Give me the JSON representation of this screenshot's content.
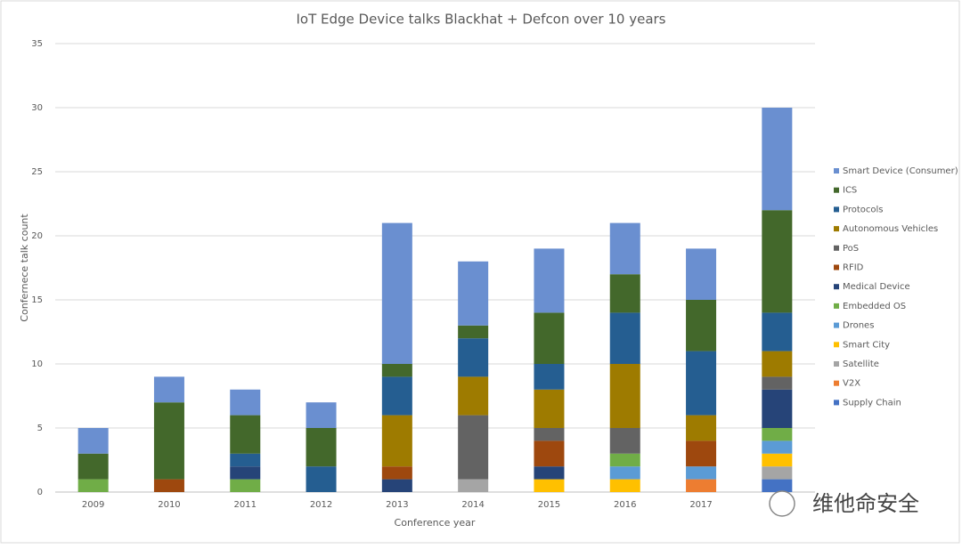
{
  "chart_data": {
    "type": "stacked_bar",
    "title": "IoT Edge Device talks Blackhat + Defcon over 10 years",
    "x_label": "Conference year",
    "y_label": "Confernece talk count",
    "categories": [
      "2009",
      "2010",
      "2011",
      "2012",
      "2013",
      "2014",
      "2015",
      "2016",
      "2017",
      null
    ],
    "ylim": [
      0,
      35
    ],
    "yticks": [
      0,
      5,
      10,
      15,
      20,
      25,
      30,
      35
    ],
    "grid": true,
    "legend": "right",
    "series": [
      {
        "name": "Smart Device (Consumer)",
        "color": "#6a8fd0",
        "values": [
          2,
          2,
          2,
          2,
          11,
          5,
          5,
          4,
          4,
          8
        ]
      },
      {
        "name": "ICS",
        "color": "#43682b",
        "values": [
          2,
          6,
          3,
          3,
          1,
          1,
          4,
          3,
          4,
          8
        ]
      },
      {
        "name": "Protocols",
        "color": "#255e91",
        "values": [
          0,
          0,
          1,
          2,
          3,
          3,
          2,
          4,
          5,
          3
        ]
      },
      {
        "name": "Autonomous Vehicles",
        "color": "#9e7b00",
        "values": [
          0,
          0,
          0,
          0,
          4,
          3,
          3,
          5,
          2,
          2
        ]
      },
      {
        "name": "PoS",
        "color": "#636363",
        "values": [
          0,
          0,
          0,
          0,
          0,
          5,
          1,
          2,
          0,
          1
        ]
      },
      {
        "name": "RFID",
        "color": "#9e480e",
        "values": [
          0,
          1,
          0,
          0,
          1,
          0,
          2,
          0,
          2,
          0
        ]
      },
      {
        "name": "Medical Device",
        "color": "#264478",
        "values": [
          0,
          0,
          1,
          0,
          1,
          0,
          1,
          0,
          0,
          3
        ]
      },
      {
        "name": "Embedded OS",
        "color": "#70ad47",
        "values": [
          1,
          0,
          1,
          0,
          0,
          0,
          0,
          1,
          0,
          1
        ]
      },
      {
        "name": "Drones",
        "color": "#5b9bd5",
        "values": [
          0,
          0,
          0,
          0,
          0,
          0,
          0,
          1,
          1,
          1
        ]
      },
      {
        "name": "Smart City",
        "color": "#ffc000",
        "values": [
          0,
          0,
          0,
          0,
          0,
          0,
          1,
          1,
          0,
          1
        ]
      },
      {
        "name": "Satellite",
        "color": "#a5a5a5",
        "values": [
          0,
          0,
          0,
          0,
          0,
          1,
          0,
          0,
          0,
          1
        ]
      },
      {
        "name": "V2X",
        "color": "#ed7d31",
        "values": [
          0,
          0,
          0,
          0,
          0,
          0,
          0,
          0,
          1,
          0
        ]
      },
      {
        "name": "Supply Chain",
        "color": "#4472c4",
        "values": [
          0,
          0,
          0,
          0,
          0,
          0,
          0,
          0,
          0,
          1
        ]
      }
    ],
    "watermark": "维他命安全"
  }
}
